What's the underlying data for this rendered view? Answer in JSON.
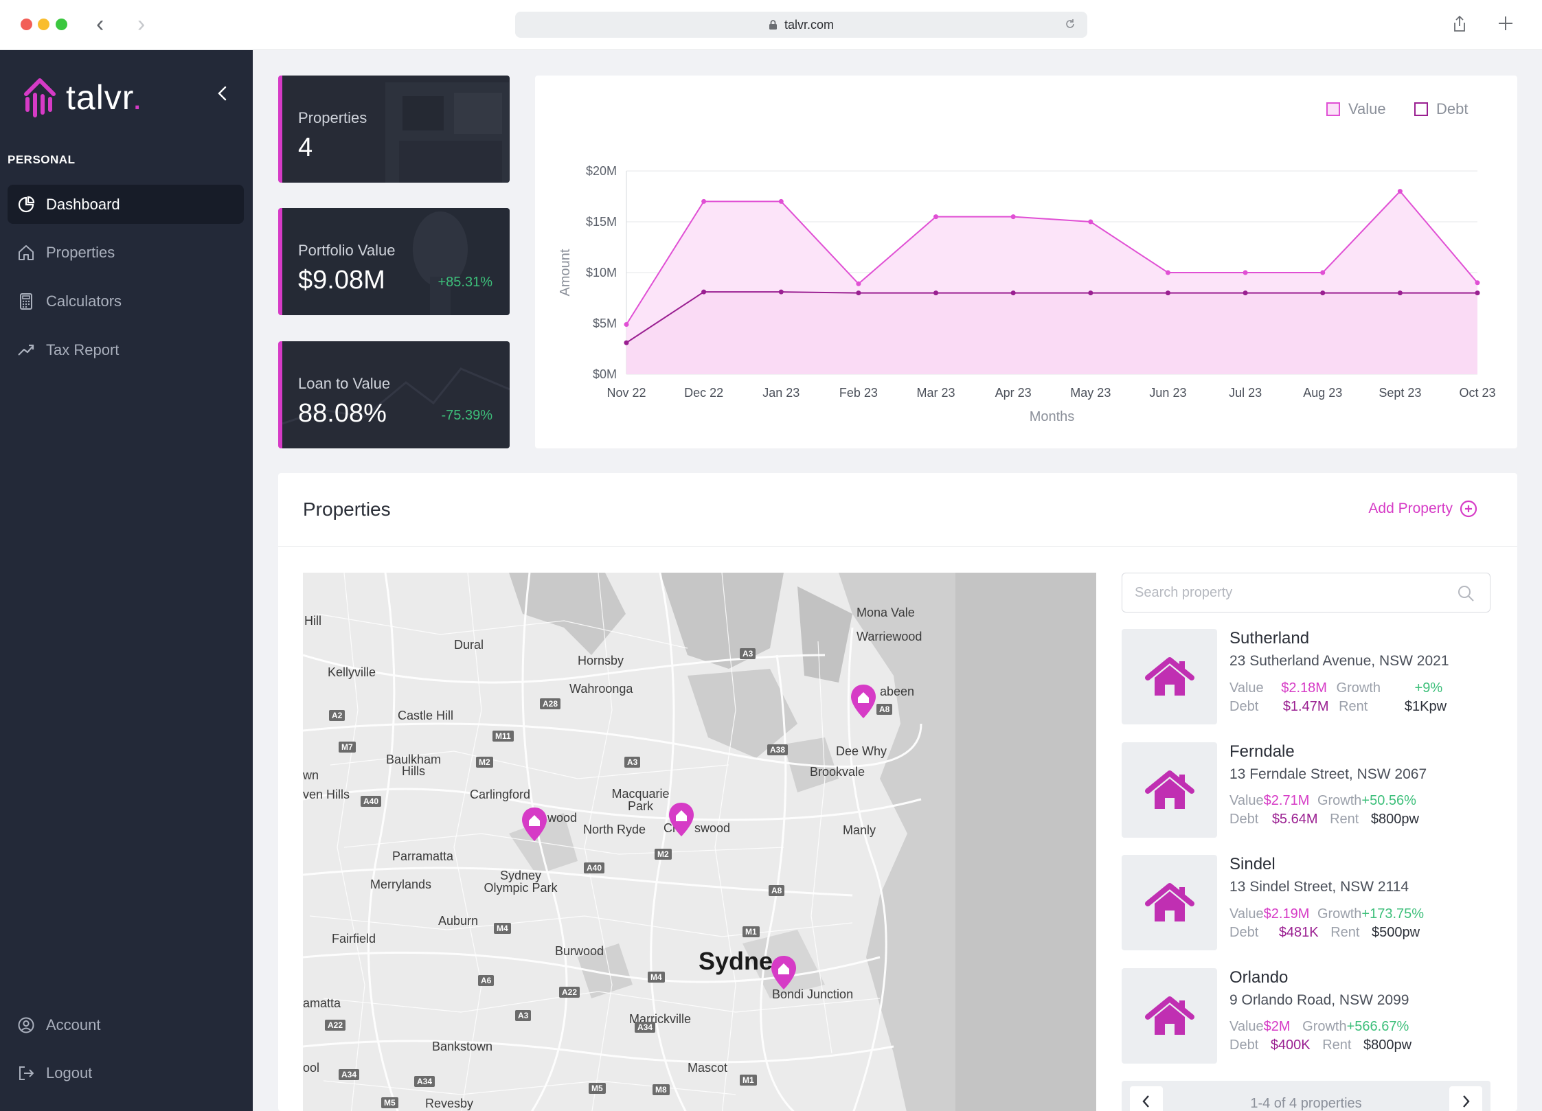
{
  "browser": {
    "url": "talvr.com"
  },
  "brand": {
    "name": "talvr",
    "dot": "."
  },
  "sidebar": {
    "section": "PERSONAL",
    "items": [
      {
        "label": "Dashboard",
        "icon": "pie-chart-icon",
        "active": true
      },
      {
        "label": "Properties",
        "icon": "home-icon"
      },
      {
        "label": "Calculators",
        "icon": "calculator-icon"
      },
      {
        "label": "Tax Report",
        "icon": "trend-up-icon"
      }
    ],
    "bottom": [
      {
        "label": "Account",
        "icon": "account-icon"
      },
      {
        "label": "Logout",
        "icon": "logout-icon"
      }
    ]
  },
  "stats": [
    {
      "label": "Properties",
      "value": "4",
      "delta": ""
    },
    {
      "label": "Portfolio Value",
      "value": "$9.08M",
      "delta": "+85.31%"
    },
    {
      "label": "Loan to Value",
      "value": "88.08%",
      "delta": "-75.39%"
    }
  ],
  "colors": {
    "accent": "#d63bc6",
    "debt": "#9a1f91",
    "sidebar": "#232938",
    "positive": "#3dbf7a"
  },
  "chart_data": {
    "type": "area",
    "xlabel": "Months",
    "ylabel": "Amount",
    "ylim": [
      0,
      20
    ],
    "yticks": [
      "$0M",
      "$5M",
      "$10M",
      "$15M",
      "$20M"
    ],
    "categories": [
      "Nov 22",
      "Dec 22",
      "Jan 23",
      "Feb 23",
      "Mar 23",
      "Apr 23",
      "May 23",
      "Jun 23",
      "Jul 23",
      "Aug 23",
      "Sept 23",
      "Oct 23"
    ],
    "series": [
      {
        "name": "Value",
        "values": [
          4.9,
          17.0,
          17.0,
          8.9,
          15.5,
          15.5,
          15.0,
          10.0,
          10.0,
          10.0,
          18.0,
          9.0
        ],
        "color": "#e04fd4"
      },
      {
        "name": "Debt",
        "values": [
          3.1,
          8.1,
          8.1,
          8.0,
          8.0,
          8.0,
          8.0,
          8.0,
          8.0,
          8.0,
          8.0,
          8.0
        ],
        "color": "#9a1f91"
      }
    ],
    "legend": "top-right",
    "grid": true
  },
  "properties_section": {
    "title": "Properties",
    "add_label": "Add Property",
    "search_placeholder": "Search property",
    "pager_text": "1-4 of 4 properties",
    "labels": {
      "value": "Value",
      "debt": "Debt",
      "growth": "Growth",
      "rent": "Rent"
    },
    "items": [
      {
        "name": "Sutherland",
        "address": "23 Sutherland Avenue, NSW 2021",
        "value": "$2.18M",
        "debt": "$1.47M",
        "growth": "+9%",
        "rent": "$1Kpw"
      },
      {
        "name": "Ferndale",
        "address": "13 Ferndale Street, NSW 2067",
        "value": "$2.71M",
        "debt": "$5.64M",
        "growth": "+50.56%",
        "rent": "$800pw"
      },
      {
        "name": "Sindel",
        "address": "13 Sindel Street, NSW 2114",
        "value": "$2.19M",
        "debt": "$481K",
        "growth": "+173.75%",
        "rent": "$500pw"
      },
      {
        "name": "Orlando",
        "address": "9 Orlando Road, NSW 2099",
        "value": "$2M",
        "debt": "$400K",
        "growth": "+566.67%",
        "rent": "$800pw"
      }
    ]
  },
  "map": {
    "places": [
      "Hill",
      "Dural",
      "Kellyville",
      "Hornsby",
      "Wahroonga",
      "Castle Hill",
      "Baulkham Hills",
      "wn",
      "ven Hills",
      "Carlingford",
      "Macquarie Park",
      "wood",
      "North Ryde",
      "Ch",
      "swood",
      "Parramatta",
      "Merrylands",
      "Sydney Olympic Park",
      "Auburn",
      "Fairfield",
      "Burwood",
      "Sydne",
      "Bondi Junction",
      "amatta",
      "Marrickville",
      "Bankstown",
      "Mascot",
      "ool",
      "Revesby",
      "Mona Vale",
      "Warriewood",
      "abeen",
      "Dee Why",
      "Brookvale",
      "Manly"
    ],
    "roads": [
      "A2",
      "M7",
      "A40",
      "A28",
      "M11",
      "M2",
      "A3",
      "A3",
      "A38",
      "A8",
      "M2",
      "A40",
      "A8",
      "M4",
      "A6",
      "A22",
      "M4",
      "M1",
      "A34",
      "A3",
      "A22",
      "A34",
      "M5",
      "M8",
      "M1",
      "A34",
      "M5",
      "A3"
    ]
  }
}
